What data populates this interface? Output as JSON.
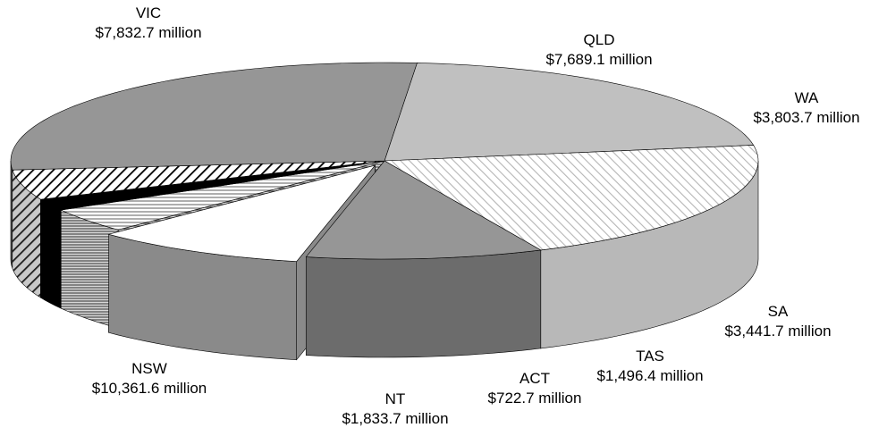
{
  "chart_data": {
    "type": "pie",
    "style": "3d-exploded",
    "title": "",
    "categories": [
      "VIC",
      "QLD",
      "WA",
      "SA",
      "TAS",
      "ACT",
      "NT",
      "NSW"
    ],
    "values": [
      7832.7,
      7689.1,
      3803.7,
      3441.7,
      1496.4,
      722.7,
      1833.7,
      10361.6
    ],
    "slices": [
      {
        "name": "VIC",
        "value": 7832.7,
        "label": "$7,832.7 million",
        "fill": "#c0c0c0",
        "pattern": "solid"
      },
      {
        "name": "QLD",
        "value": 7689.1,
        "label": "$7,689.1 million",
        "fill": "#ffffff",
        "pattern": "diagonal-light"
      },
      {
        "name": "WA",
        "value": 3803.7,
        "label": "$3,803.7 million",
        "fill": "#969696",
        "pattern": "solid"
      },
      {
        "name": "SA",
        "value": 3441.7,
        "label": "$3,441.7 million",
        "fill": "#ffffff",
        "pattern": "solid"
      },
      {
        "name": "TAS",
        "value": 1496.4,
        "label": "$1,496.4 million",
        "fill": "#ffffff",
        "pattern": "horizontal-lines"
      },
      {
        "name": "ACT",
        "value": 722.7,
        "label": "$722.7 million",
        "fill": "#000000",
        "pattern": "solid"
      },
      {
        "name": "NT",
        "value": 1833.7,
        "label": "$1,833.7 million",
        "fill": "#ffffff",
        "pattern": "diagonal-dark"
      },
      {
        "name": "NSW",
        "value": 10361.6,
        "label": "$10,361.6 million",
        "fill": "#969696",
        "pattern": "solid"
      }
    ]
  }
}
